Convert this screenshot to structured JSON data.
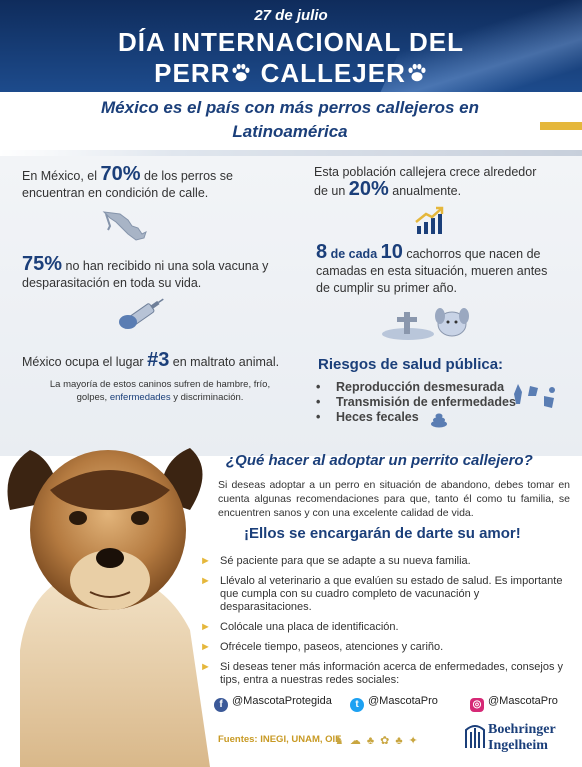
{
  "header": {
    "date": "27 de julio",
    "title_line1": "DÍA INTERNACIONAL DEL",
    "title_line2_a": "PERR",
    "title_line2_b": " CALLEJER"
  },
  "subheader": {
    "line1": "México es el país con más perros callejeros en",
    "line2": "Latinoamérica"
  },
  "stats": {
    "s1_pre": "En México, el ",
    "s1_big": "70%",
    "s1_post": " de los perros se",
    "s1_line2": "encuentran en condición de calle.",
    "s2_line1": "Esta población callejera crece alrededor",
    "s2_pre": "de un ",
    "s2_big": "20%",
    "s2_post": " anualmente.",
    "s3_big": "75%",
    "s3_post": " no han recibido ni una sola vacuna y",
    "s3_line2": "desparasitación en toda su vida.",
    "s4_big1": "8",
    "s4_mid": " de cada ",
    "s4_big2": "10",
    "s4_post": " cachorros que nacen de",
    "s4_line2": "camadas en esta situación, mueren antes",
    "s4_line3": "de cumplir su primer año.",
    "s5_pre": "México ocupa el lugar ",
    "s5_big": "#3",
    "s5_post": " en maltrato animal.",
    "note_line1": "La mayoría de estos caninos sufren de hambre, frío,",
    "note_pre": "golpes, ",
    "note_link": "enfermedades",
    "note_post": " y discriminación."
  },
  "risks": {
    "title": "Riesgos de salud pública:",
    "items": [
      "Reproducción desmesurada",
      "Transmisión de enfermedades",
      "Heces fecales"
    ]
  },
  "adopt": {
    "question": "¿Qué hacer al adoptar un perrito callejero?",
    "intro": "Si deseas adoptar a un perro en situación de abandono, debes tomar en cuenta algunas recomendaciones para que, tanto él como tu familia, se encuentren sanos y con una excelente calidad de vida.",
    "love": "¡Ellos se encargarán de darte su amor!",
    "tips": [
      "Sé paciente para que se adapte a su nueva familia.",
      "Llévalo al veterinario a que evalúen su estado de salud. Es importante que cumpla con su cuadro completo de vacunación y desparasitaciones.",
      "Colócale una placa de identificación.",
      "Ofrécele tiempo, paseos, atenciones y cariño.",
      "Si deseas tener más información acerca de enfermedades, consejos y tips, entra a nuestras redes sociales:"
    ]
  },
  "social": {
    "facebook": "@MascotaProtegida",
    "twitter": "@MascotaPro",
    "instagram": "@MascotaPro"
  },
  "footer": {
    "sources": "Fuentes: INEGI, UNAM, OIE",
    "brand_line1": "Boehringer",
    "brand_line2": "Ingelheim"
  },
  "colors": {
    "navy": "#1b3f7a",
    "gold": "#e5b73b",
    "header_bg": "#0f2c5c"
  }
}
